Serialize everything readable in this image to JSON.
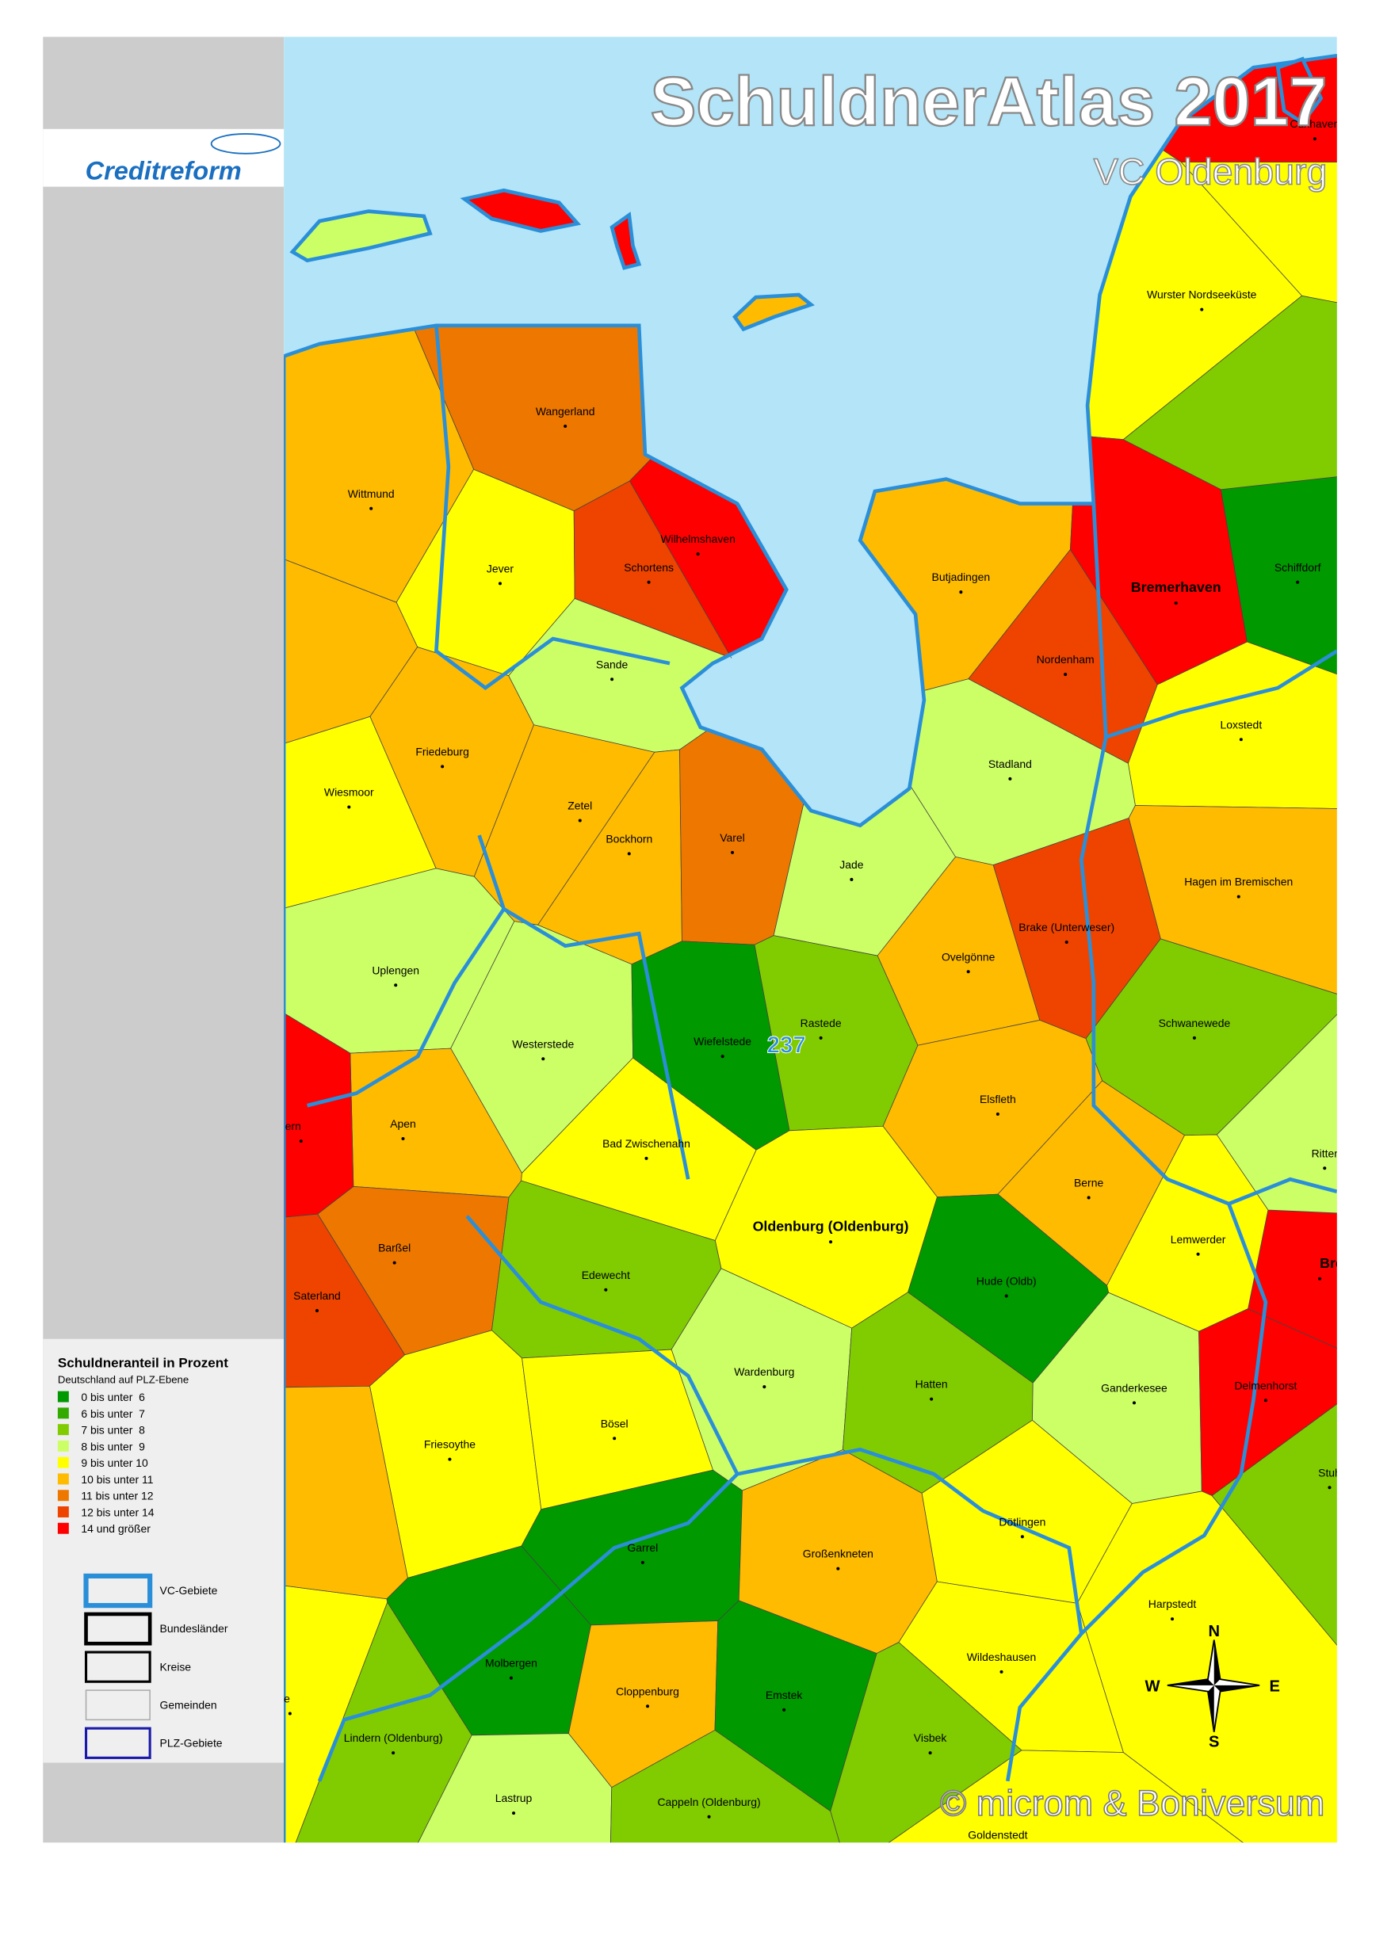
{
  "header": {
    "title": "SchuldnerAtlas 2017",
    "subtitle": "VC Oldenburg",
    "logo": "Creditreform"
  },
  "map": {
    "places": [
      {
        "name": "Wurster Nordseeküste",
        "color": "#ffff00"
      },
      {
        "name": "Wangerland",
        "color": "#ee7700"
      },
      {
        "name": "Wittmund",
        "color": "#ffbb00"
      },
      {
        "name": "Wilhelmshaven",
        "color": "#ff0000"
      },
      {
        "name": "Jever",
        "color": "#ffff00"
      },
      {
        "name": "Schortens",
        "color": "#ee4400"
      },
      {
        "name": "Butjadingen",
        "color": "#ffbb00"
      },
      {
        "name": "Bremerhaven",
        "color": "#ff0000"
      },
      {
        "name": "Schiffdorf",
        "color": "#009900"
      },
      {
        "name": "Sande",
        "color": "#ccff66"
      },
      {
        "name": "Nordenham",
        "color": "#ee4400"
      },
      {
        "name": "Friedeburg",
        "color": "#ffbb00"
      },
      {
        "name": "Loxstedt",
        "color": "#ffff00"
      },
      {
        "name": "Wiesmoor",
        "color": "#ffff00"
      },
      {
        "name": "Stadland",
        "color": "#ccff66"
      },
      {
        "name": "Zetel",
        "color": "#ffbb00"
      },
      {
        "name": "Bockhorn",
        "color": "#ffbb00"
      },
      {
        "name": "Varel",
        "color": "#ee7700"
      },
      {
        "name": "Jade",
        "color": "#ccff66"
      },
      {
        "name": "Hagen im Bremischen",
        "color": "#ffbb00"
      },
      {
        "name": "Brake (Unterweser)",
        "color": "#ee4400"
      },
      {
        "name": "Uplengen",
        "color": "#ccff66"
      },
      {
        "name": "Ovelgönne",
        "color": "#ffbb00"
      },
      {
        "name": "Schwanewede",
        "color": "#80cc00"
      },
      {
        "name": "Rastede",
        "color": "#80cc00"
      },
      {
        "name": "Westerstede",
        "color": "#ccff66"
      },
      {
        "name": "Wiefelstede",
        "color": "#009900"
      },
      {
        "name": "Elsfleth",
        "color": "#ffbb00"
      },
      {
        "name": "Apen",
        "color": "#ffbb00"
      },
      {
        "name": "Bad Zwischenahn",
        "color": "#ffff00"
      },
      {
        "name": "Berne",
        "color": "#ffbb00"
      },
      {
        "name": "Oldenburg (Oldenburg)",
        "color": "#ffff00"
      },
      {
        "name": "Lemwerder",
        "color": "#ffff00"
      },
      {
        "name": "Barßel",
        "color": "#ee7700"
      },
      {
        "name": "Edewecht",
        "color": "#80cc00"
      },
      {
        "name": "Hude (Oldb)",
        "color": "#009900"
      },
      {
        "name": "Saterland",
        "color": "#ee4400"
      },
      {
        "name": "Wardenburg",
        "color": "#ccff66"
      },
      {
        "name": "Hatten",
        "color": "#80cc00"
      },
      {
        "name": "Ganderkesee",
        "color": "#ccff66"
      },
      {
        "name": "Delmenhorst",
        "color": "#ff0000"
      },
      {
        "name": "Friesoythe",
        "color": "#ffff00"
      },
      {
        "name": "Bösel",
        "color": "#ffff00"
      },
      {
        "name": "Dötlingen",
        "color": "#ffff00"
      },
      {
        "name": "Garrel",
        "color": "#009900"
      },
      {
        "name": "Großenkneten",
        "color": "#ffbb00"
      },
      {
        "name": "Harpstedt",
        "color": "#ffff00"
      },
      {
        "name": "Molbergen",
        "color": "#009900"
      },
      {
        "name": "Wildeshausen",
        "color": "#ffff00"
      },
      {
        "name": "Cloppenburg",
        "color": "#ffbb00"
      },
      {
        "name": "Emstek",
        "color": "#009900"
      },
      {
        "name": "Lindern (Oldenburg)",
        "color": "#80cc00"
      },
      {
        "name": "Visbek",
        "color": "#80cc00"
      },
      {
        "name": "Lastrup",
        "color": "#ccff66"
      },
      {
        "name": "Cappeln (Oldenburg)",
        "color": "#80cc00"
      },
      {
        "name": "Goldenstedt",
        "color": "#ffff00"
      },
      {
        "name": "Cuxhaven",
        "color": "#ff0000"
      },
      {
        "name": "Bren",
        "color": "#ff0000"
      },
      {
        "name": "Ritter",
        "color": "#ccff66"
      },
      {
        "name": "Stuh",
        "color": "#80cc00"
      },
      {
        "name": "ern",
        "color": "#ff0000"
      },
      {
        "name": "te",
        "color": "#ffff00"
      },
      {
        "name": null,
        "color": "#80cc00"
      },
      {
        "name": null,
        "color": "#ffff00"
      },
      {
        "name": null,
        "color": "#ffbb00"
      },
      {
        "name": null,
        "color": "#ffbb00"
      }
    ],
    "vc_label": "237",
    "copyright": "© microm & Boniversum",
    "compass": {
      "n": "N",
      "e": "E",
      "s": "S",
      "w": "W"
    }
  },
  "legend": {
    "title": "Schuldneranteil in Prozent",
    "subtitle": "Deutschland auf PLZ-Ebene",
    "classes": [
      {
        "label": "0 bis unter  6",
        "color": "#009900"
      },
      {
        "label": "6 bis unter  7",
        "color": "#33aa00"
      },
      {
        "label": "7 bis unter  8",
        "color": "#80cc00"
      },
      {
        "label": "8 bis unter  9",
        "color": "#ccff66"
      },
      {
        "label": "9 bis unter 10",
        "color": "#ffff00"
      },
      {
        "label": "10 bis unter 11",
        "color": "#ffbb00"
      },
      {
        "label": "11 bis unter 12",
        "color": "#ee7700"
      },
      {
        "label": "12 bis unter 14",
        "color": "#ee4400"
      },
      {
        "label": "14 und größer",
        "color": "#ff0000"
      }
    ],
    "boundaries": [
      "VC-Gebiete",
      "Bundesländer",
      "Kreise",
      "Gemeinden",
      "PLZ-Gebiete"
    ]
  }
}
